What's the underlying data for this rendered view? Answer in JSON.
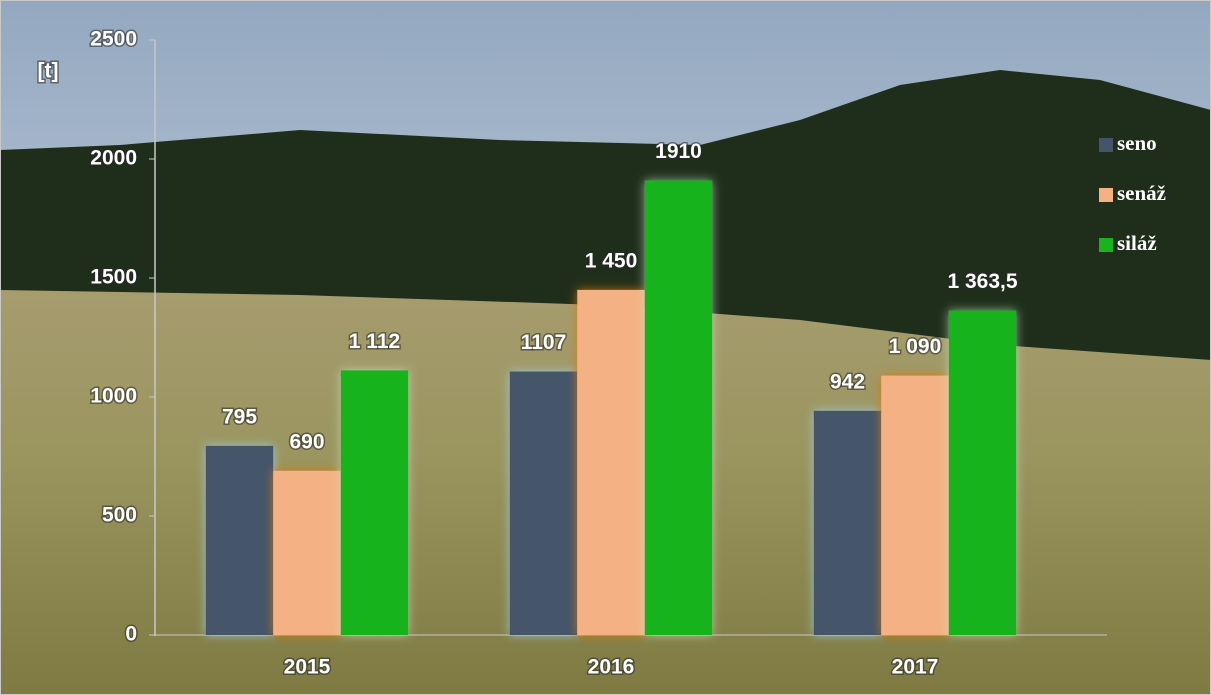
{
  "chart_data": {
    "type": "bar",
    "y_label": "[t]",
    "categories": [
      "2015",
      "2016",
      "2017"
    ],
    "series": [
      {
        "name": "seno",
        "color": "#44546a",
        "values": [
          795,
          1107,
          942
        ],
        "value_labels": [
          "795",
          "1107",
          "942"
        ]
      },
      {
        "name": "senáž",
        "color": "#f4b183",
        "values": [
          690,
          1450,
          1090
        ],
        "value_labels": [
          "690",
          "1 450",
          "1 090"
        ]
      },
      {
        "name": "siláž",
        "color": "#19b31e",
        "values": [
          1112,
          1910,
          1363.5
        ],
        "value_labels": [
          "1 112",
          "1910",
          "1 363,5"
        ]
      }
    ],
    "ylim": [
      0,
      2500
    ],
    "yticks": [
      0,
      500,
      1000,
      1500,
      2000,
      2500
    ],
    "grid": false,
    "legend": "right"
  }
}
